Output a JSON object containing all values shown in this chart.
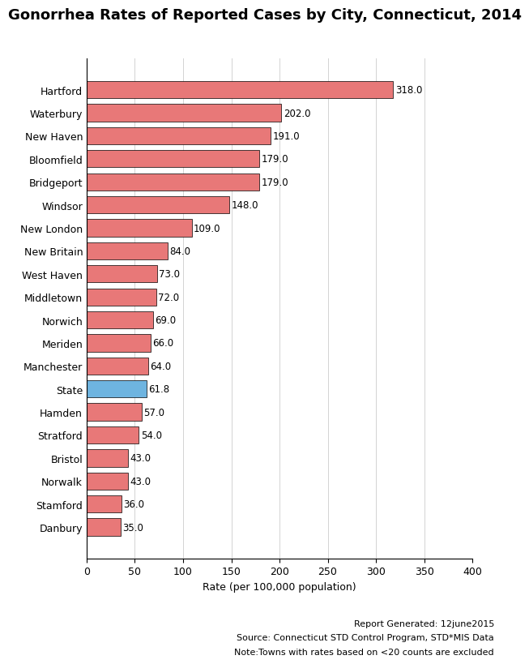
{
  "title": "Gonorrhea Rates of Reported Cases by City, Connecticut, 2014",
  "categories": [
    "Hartford",
    "Waterbury",
    "New Haven",
    "Bloomfield",
    "Bridgeport",
    "Windsor",
    "New London",
    "New Britain",
    "West Haven",
    "Middletown",
    "Norwich",
    "Meriden",
    "Manchester",
    "State",
    "Hamden",
    "Stratford",
    "Bristol",
    "Norwalk",
    "Stamford",
    "Danbury"
  ],
  "values": [
    318.0,
    202.0,
    191.0,
    179.0,
    179.0,
    148.0,
    109.0,
    84.0,
    73.0,
    72.0,
    69.0,
    66.0,
    64.0,
    61.8,
    57.0,
    54.0,
    43.0,
    43.0,
    36.0,
    35.0
  ],
  "bar_color_default": "#E87878",
  "bar_color_state": "#6EB4E0",
  "state_index": 13,
  "xlabel": "Rate (per 100,000 population)",
  "xlim": [
    0,
    400
  ],
  "xticks": [
    0,
    50,
    100,
    150,
    200,
    250,
    300,
    350,
    400
  ],
  "note_line1": "Note:Towns with rates based on <20 counts are excluded",
  "note_line2": "Source: Connecticut STD Control Program, STD*MIS Data",
  "note_line3": "Report Generated: 12june2015",
  "title_fontsize": 13,
  "label_fontsize": 9,
  "value_fontsize": 8.5,
  "xlabel_fontsize": 9,
  "note_fontsize": 8
}
